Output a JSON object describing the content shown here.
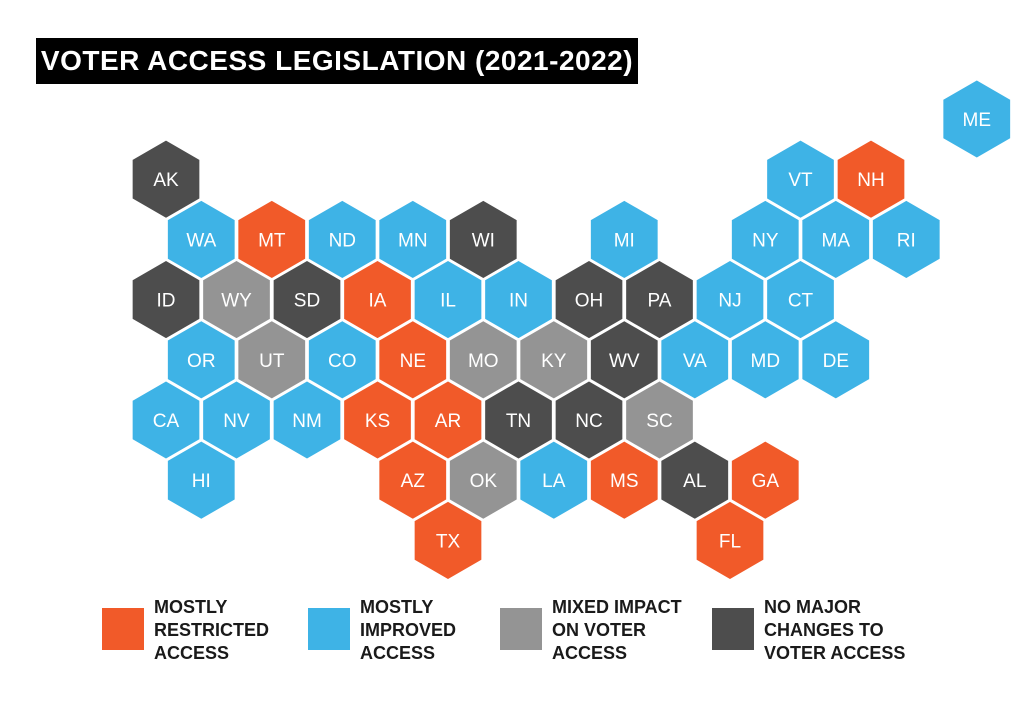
{
  "title": "VOTER ACCESS LEGISLATION (2021-2022)",
  "colors": {
    "restricted": "#f15a29",
    "improved": "#3eb3e6",
    "mixed": "#949494",
    "none": "#4d4d4d"
  },
  "legend": [
    {
      "key": "restricted",
      "lines": [
        "MOSTLY",
        "RESTRICTED",
        "ACCESS"
      ]
    },
    {
      "key": "improved",
      "lines": [
        "MOSTLY",
        "IMPROVED",
        "ACCESS"
      ]
    },
    {
      "key": "mixed",
      "lines": [
        "MIXED IMPACT",
        "ON VOTER",
        "ACCESS"
      ]
    },
    {
      "key": "none",
      "lines": [
        "NO MAJOR",
        "CHANGES TO",
        "VOTER ACCESS"
      ]
    }
  ],
  "states": [
    {
      "abbr": "ME",
      "row": 0,
      "col": 11,
      "status": "improved"
    },
    {
      "abbr": "AK",
      "row": 1,
      "col": 0,
      "status": "none"
    },
    {
      "abbr": "VT",
      "row": 1,
      "col": 9,
      "status": "improved"
    },
    {
      "abbr": "NH",
      "row": 1,
      "col": 10,
      "status": "restricted"
    },
    {
      "abbr": "WA",
      "row": 2,
      "col": 0,
      "status": "improved"
    },
    {
      "abbr": "MT",
      "row": 2,
      "col": 1,
      "status": "restricted"
    },
    {
      "abbr": "ND",
      "row": 2,
      "col": 2,
      "status": "improved"
    },
    {
      "abbr": "MN",
      "row": 2,
      "col": 3,
      "status": "improved"
    },
    {
      "abbr": "WI",
      "row": 2,
      "col": 4,
      "status": "none"
    },
    {
      "abbr": "MI",
      "row": 2,
      "col": 6,
      "status": "improved"
    },
    {
      "abbr": "NY",
      "row": 2,
      "col": 8,
      "status": "improved"
    },
    {
      "abbr": "MA",
      "row": 2,
      "col": 9,
      "status": "improved"
    },
    {
      "abbr": "RI",
      "row": 2,
      "col": 10,
      "status": "improved"
    },
    {
      "abbr": "ID",
      "row": 3,
      "col": 0,
      "status": "none"
    },
    {
      "abbr": "WY",
      "row": 3,
      "col": 1,
      "status": "mixed"
    },
    {
      "abbr": "SD",
      "row": 3,
      "col": 2,
      "status": "none"
    },
    {
      "abbr": "IA",
      "row": 3,
      "col": 3,
      "status": "restricted"
    },
    {
      "abbr": "IL",
      "row": 3,
      "col": 4,
      "status": "improved"
    },
    {
      "abbr": "IN",
      "row": 3,
      "col": 5,
      "status": "improved"
    },
    {
      "abbr": "OH",
      "row": 3,
      "col": 6,
      "status": "none"
    },
    {
      "abbr": "PA",
      "row": 3,
      "col": 7,
      "status": "none"
    },
    {
      "abbr": "NJ",
      "row": 3,
      "col": 8,
      "status": "improved"
    },
    {
      "abbr": "CT",
      "row": 3,
      "col": 9,
      "status": "improved"
    },
    {
      "abbr": "OR",
      "row": 4,
      "col": 0,
      "status": "improved"
    },
    {
      "abbr": "UT",
      "row": 4,
      "col": 1,
      "status": "mixed"
    },
    {
      "abbr": "CO",
      "row": 4,
      "col": 2,
      "status": "improved"
    },
    {
      "abbr": "NE",
      "row": 4,
      "col": 3,
      "status": "restricted"
    },
    {
      "abbr": "MO",
      "row": 4,
      "col": 4,
      "status": "mixed"
    },
    {
      "abbr": "KY",
      "row": 4,
      "col": 5,
      "status": "mixed"
    },
    {
      "abbr": "WV",
      "row": 4,
      "col": 6,
      "status": "none"
    },
    {
      "abbr": "VA",
      "row": 4,
      "col": 7,
      "status": "improved"
    },
    {
      "abbr": "MD",
      "row": 4,
      "col": 8,
      "status": "improved"
    },
    {
      "abbr": "DE",
      "row": 4,
      "col": 9,
      "status": "improved"
    },
    {
      "abbr": "CA",
      "row": 5,
      "col": 0,
      "status": "improved"
    },
    {
      "abbr": "NV",
      "row": 5,
      "col": 1,
      "status": "improved"
    },
    {
      "abbr": "NM",
      "row": 5,
      "col": 2,
      "status": "improved"
    },
    {
      "abbr": "KS",
      "row": 5,
      "col": 3,
      "status": "restricted"
    },
    {
      "abbr": "AR",
      "row": 5,
      "col": 4,
      "status": "restricted"
    },
    {
      "abbr": "TN",
      "row": 5,
      "col": 5,
      "status": "none"
    },
    {
      "abbr": "NC",
      "row": 5,
      "col": 6,
      "status": "none"
    },
    {
      "abbr": "SC",
      "row": 5,
      "col": 7,
      "status": "mixed"
    },
    {
      "abbr": "HI",
      "row": 6,
      "col": 0,
      "status": "improved"
    },
    {
      "abbr": "AZ",
      "row": 6,
      "col": 3,
      "status": "restricted"
    },
    {
      "abbr": "OK",
      "row": 6,
      "col": 4,
      "status": "mixed"
    },
    {
      "abbr": "LA",
      "row": 6,
      "col": 5,
      "status": "improved"
    },
    {
      "abbr": "MS",
      "row": 6,
      "col": 6,
      "status": "restricted"
    },
    {
      "abbr": "AL",
      "row": 6,
      "col": 7,
      "status": "none"
    },
    {
      "abbr": "GA",
      "row": 6,
      "col": 8,
      "status": "restricted"
    },
    {
      "abbr": "TX",
      "row": 7,
      "col": 4,
      "status": "restricted"
    },
    {
      "abbr": "FL",
      "row": 7,
      "col": 8,
      "status": "restricted"
    }
  ]
}
